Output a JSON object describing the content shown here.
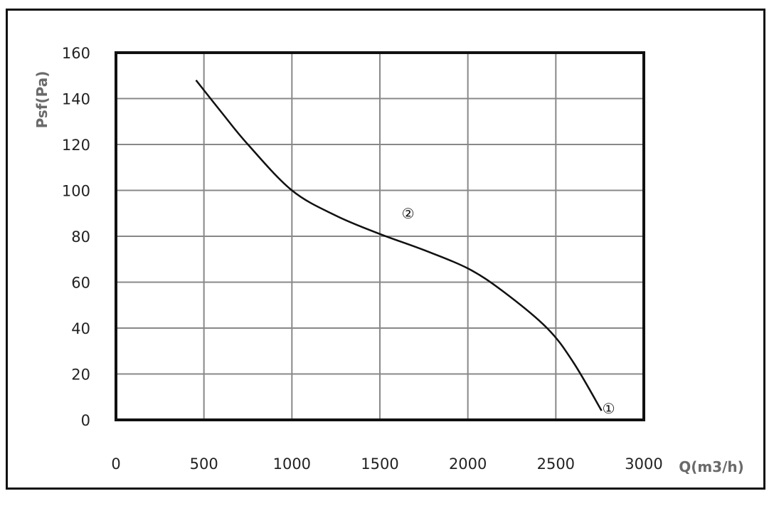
{
  "chart_data": {
    "type": "line",
    "title": "",
    "xlabel": "Q(m3/h)",
    "ylabel": "Psf(Pa)",
    "xlim": [
      0,
      3000
    ],
    "ylim": [
      0,
      160
    ],
    "xticks": [
      0,
      500,
      1000,
      1500,
      2000,
      2500,
      3000
    ],
    "yticks": [
      0,
      20,
      40,
      60,
      80,
      100,
      120,
      140,
      160
    ],
    "grid": true,
    "series": [
      {
        "color": "#111111",
        "x": [
          455,
          600,
          750,
          1000,
          1250,
          1500,
          1750,
          2000,
          2200,
          2450,
          2600,
          2760
        ],
        "y": [
          148,
          134,
          120,
          100,
          89,
          81,
          74,
          66,
          56,
          40,
          25,
          4
        ]
      }
    ],
    "annotations": [
      {
        "text": "②",
        "x": 1660,
        "y": 90
      },
      {
        "text": "①",
        "x": 2800,
        "y": 5
      }
    ]
  }
}
